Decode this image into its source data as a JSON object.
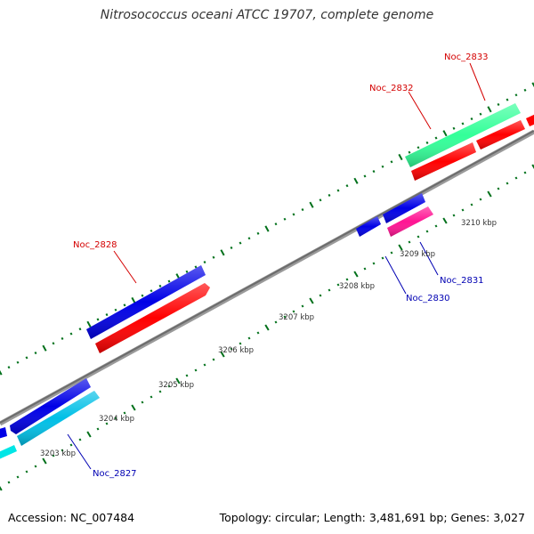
{
  "title": "Nitrosococcus oceani ATCC 19707, complete genome",
  "footer": {
    "accession": "Accession: NC_007484",
    "summary": "Topology: circular; Length: 3,481,691 bp; Genes: 3,027"
  },
  "ruler": {
    "labels": [
      "3203 kbp",
      "3204 kbp",
      "3205 kbp",
      "3206 kbp",
      "3207 kbp",
      "3208 kbp",
      "3209 kbp",
      "3210 kbp"
    ]
  },
  "genes": [
    {
      "id": "Noc_2827",
      "strand": "minus",
      "color": "#00bfe6",
      "label_color": "#0000b3"
    },
    {
      "id": "Noc_2828",
      "strand": "plus",
      "color": "#0000e6",
      "label_color": "#d40000"
    },
    {
      "id": "Noc_2830",
      "strand": "minus",
      "color": "#0000e6",
      "label_color": "#0000b3"
    },
    {
      "id": "Noc_2831",
      "strand": "minus",
      "color": "#ff1493",
      "label_color": "#0000b3"
    },
    {
      "id": "Noc_2832",
      "strand": "plus",
      "color": "#33ff99",
      "label_color": "#d40000"
    },
    {
      "id": "Noc_2833",
      "strand": "plus",
      "color": "#ff0000",
      "label_color": "#d40000"
    }
  ],
  "colors": {
    "backbone": "#808080",
    "cog_forward": "#0000e6",
    "cds_forward": "#ff0000",
    "tick": "#00701a",
    "ruler_text": "#333333"
  }
}
